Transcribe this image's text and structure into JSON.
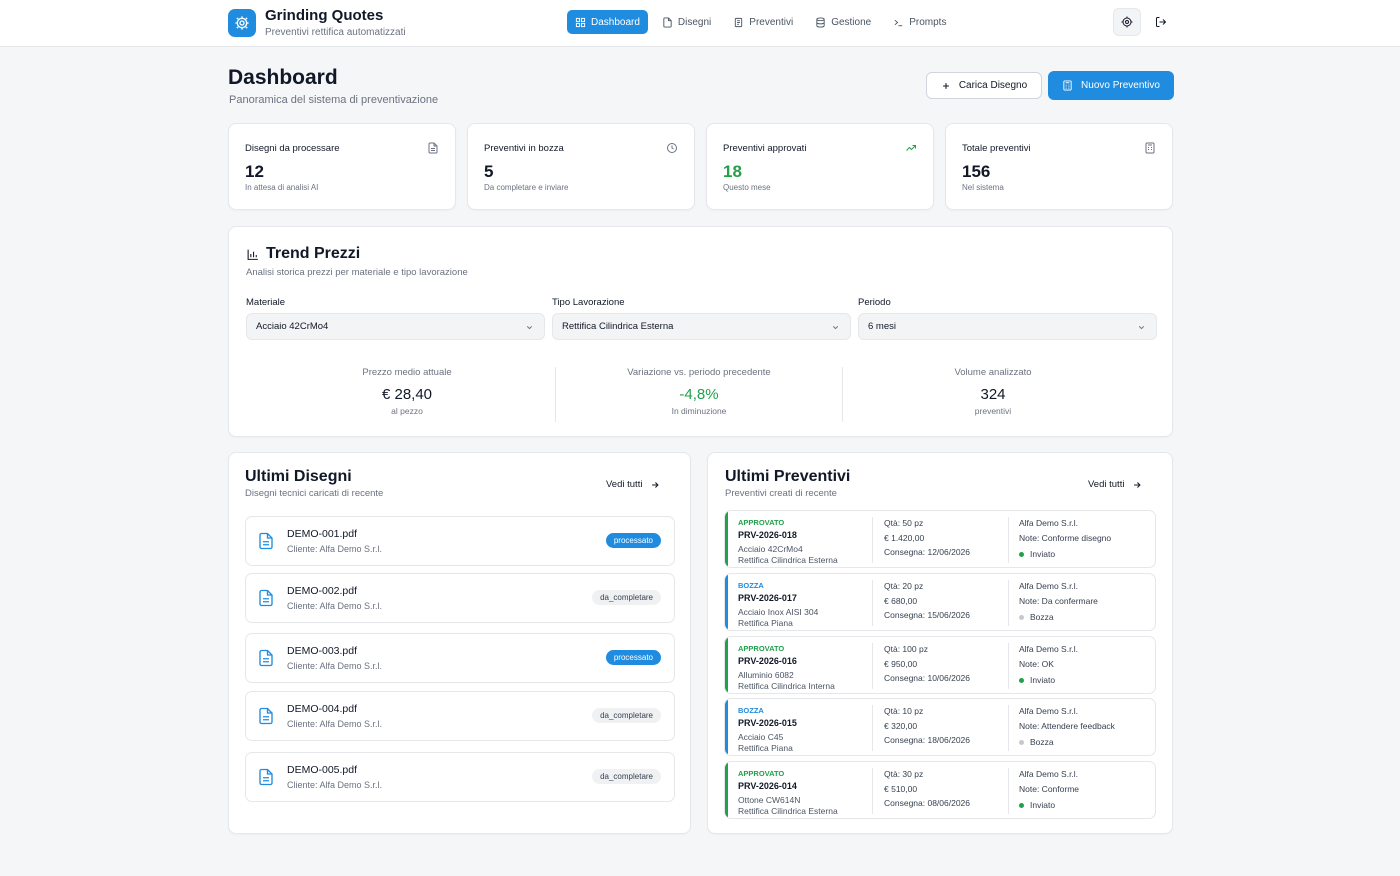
{
  "app": {
    "title": "Grinding Quotes",
    "subtitle": "Preventivi rettifica automatizzati",
    "nav": [
      {
        "label": "Dashboard",
        "icon": "grid-icon",
        "active": true
      },
      {
        "label": "Disegni",
        "icon": "file-icon",
        "active": false
      },
      {
        "label": "Preventivi",
        "icon": "document-icon",
        "active": false
      },
      {
        "label": "Gestione",
        "icon": "database-icon",
        "active": false
      },
      {
        "label": "Prompts",
        "icon": "terminal-icon",
        "active": false
      }
    ]
  },
  "header": {
    "title": "Dashboard",
    "subtitle": "Panoramica del sistema di preventivazione",
    "upload_label": "Carica Disegno",
    "new_quote_label": "Nuovo Preventivo"
  },
  "stats": [
    {
      "label": "Disegni da processare",
      "value": "12",
      "hint": "In attesa di analisi AI",
      "icon": "file-icon"
    },
    {
      "label": "Preventivi in bozza",
      "value": "5",
      "hint": "Da completare e inviare",
      "icon": "clock-icon"
    },
    {
      "label": "Preventivi approvati",
      "value": "18",
      "hint": "Questo mese",
      "icon": "trend-up-icon"
    },
    {
      "label": "Totale preventivi",
      "value": "156",
      "hint": "Nel sistema",
      "icon": "calculator-icon"
    }
  ],
  "trend": {
    "title": "Trend Prezzi",
    "subtitle": "Analisi storica prezzi per materiale e tipo lavorazione",
    "filters": [
      {
        "label": "Materiale",
        "value": "Acciaio 42CrMo4"
      },
      {
        "label": "Tipo Lavorazione",
        "value": "Rettifica Cilindrica Esterna"
      },
      {
        "label": "Periodo",
        "value": "6 mesi"
      }
    ],
    "metrics": [
      {
        "label": "Prezzo medio attuale",
        "value": "€ 28,40",
        "hint": "al pezzo"
      },
      {
        "label": "Variazione vs. periodo precedente",
        "value": "-4,8%",
        "hint": "In diminuzione"
      },
      {
        "label": "Volume analizzato",
        "value": "324",
        "hint": "preventivi"
      }
    ],
    "positive_color": "#22a04b"
  },
  "drawings": {
    "title": "Ultimi Disegni",
    "subtitle": "Disegni tecnici caricati di recente",
    "see_all": "Vedi tutti",
    "items": [
      {
        "name": "DEMO-001.pdf",
        "client": "Cliente: Alfa Demo S.r.l.",
        "status": "processato"
      },
      {
        "name": "DEMO-002.pdf",
        "client": "Cliente: Alfa Demo S.r.l.",
        "status": "da_completare"
      },
      {
        "name": "DEMO-003.pdf",
        "client": "Cliente: Alfa Demo S.r.l.",
        "status": "processato"
      },
      {
        "name": "DEMO-004.pdf",
        "client": "Cliente: Alfa Demo S.r.l.",
        "status": "da_completare"
      },
      {
        "name": "DEMO-005.pdf",
        "client": "Cliente: Alfa Demo S.r.l.",
        "status": "da_completare"
      }
    ]
  },
  "quotes": {
    "title": "Ultimi Preventivi",
    "subtitle": "Preventivi creati di recente",
    "see_all": "Vedi tutti",
    "items": [
      {
        "status": "APPROVATO",
        "code": "PRV-2026-018",
        "material": "Acciaio 42CrMo4",
        "work": "Rettifica Cilindrica Esterna",
        "qty": "Qtà: 50 pz",
        "price": "€ 1.420,00",
        "delivery": "Consegna: 12/06/2026",
        "client": "Alfa Demo S.r.l.",
        "note": "Note: Conforme disegno",
        "state": "Inviato"
      },
      {
        "status": "BOZZA",
        "code": "PRV-2026-017",
        "material": "Acciaio Inox AISI 304",
        "work": "Rettifica Piana",
        "qty": "Qtà: 20 pz",
        "price": "€ 680,00",
        "delivery": "Consegna: 15/06/2026",
        "client": "Alfa Demo S.r.l.",
        "note": "Note: Da confermare",
        "state": "Bozza"
      },
      {
        "status": "APPROVATO",
        "code": "PRV-2026-016",
        "material": "Alluminio 6082",
        "work": "Rettifica Cilindrica Interna",
        "qty": "Qtà: 100 pz",
        "price": "€ 950,00",
        "delivery": "Consegna: 10/06/2026",
        "client": "Alfa Demo S.r.l.",
        "note": "Note: OK",
        "state": "Inviato"
      },
      {
        "status": "BOZZA",
        "code": "PRV-2026-015",
        "material": "Acciaio C45",
        "work": "Rettifica Piana",
        "qty": "Qtà: 10 pz",
        "price": "€ 320,00",
        "delivery": "Consegna: 18/06/2026",
        "client": "Alfa Demo S.r.l.",
        "note": "Note: Attendere feedback",
        "state": "Bozza"
      },
      {
        "status": "APPROVATO",
        "code": "PRV-2026-014",
        "material": "Ottone CW614N",
        "work": "Rettifica Cilindrica Esterna",
        "qty": "Qtà: 30 pz",
        "price": "€ 510,00",
        "delivery": "Consegna: 08/06/2026",
        "client": "Alfa Demo S.r.l.",
        "note": "Note: Conforme",
        "state": "Inviato"
      }
    ]
  },
  "colors": {
    "accent": "#1f8ce0",
    "approved": "#22a04b",
    "draft": "#1f8ce0"
  }
}
